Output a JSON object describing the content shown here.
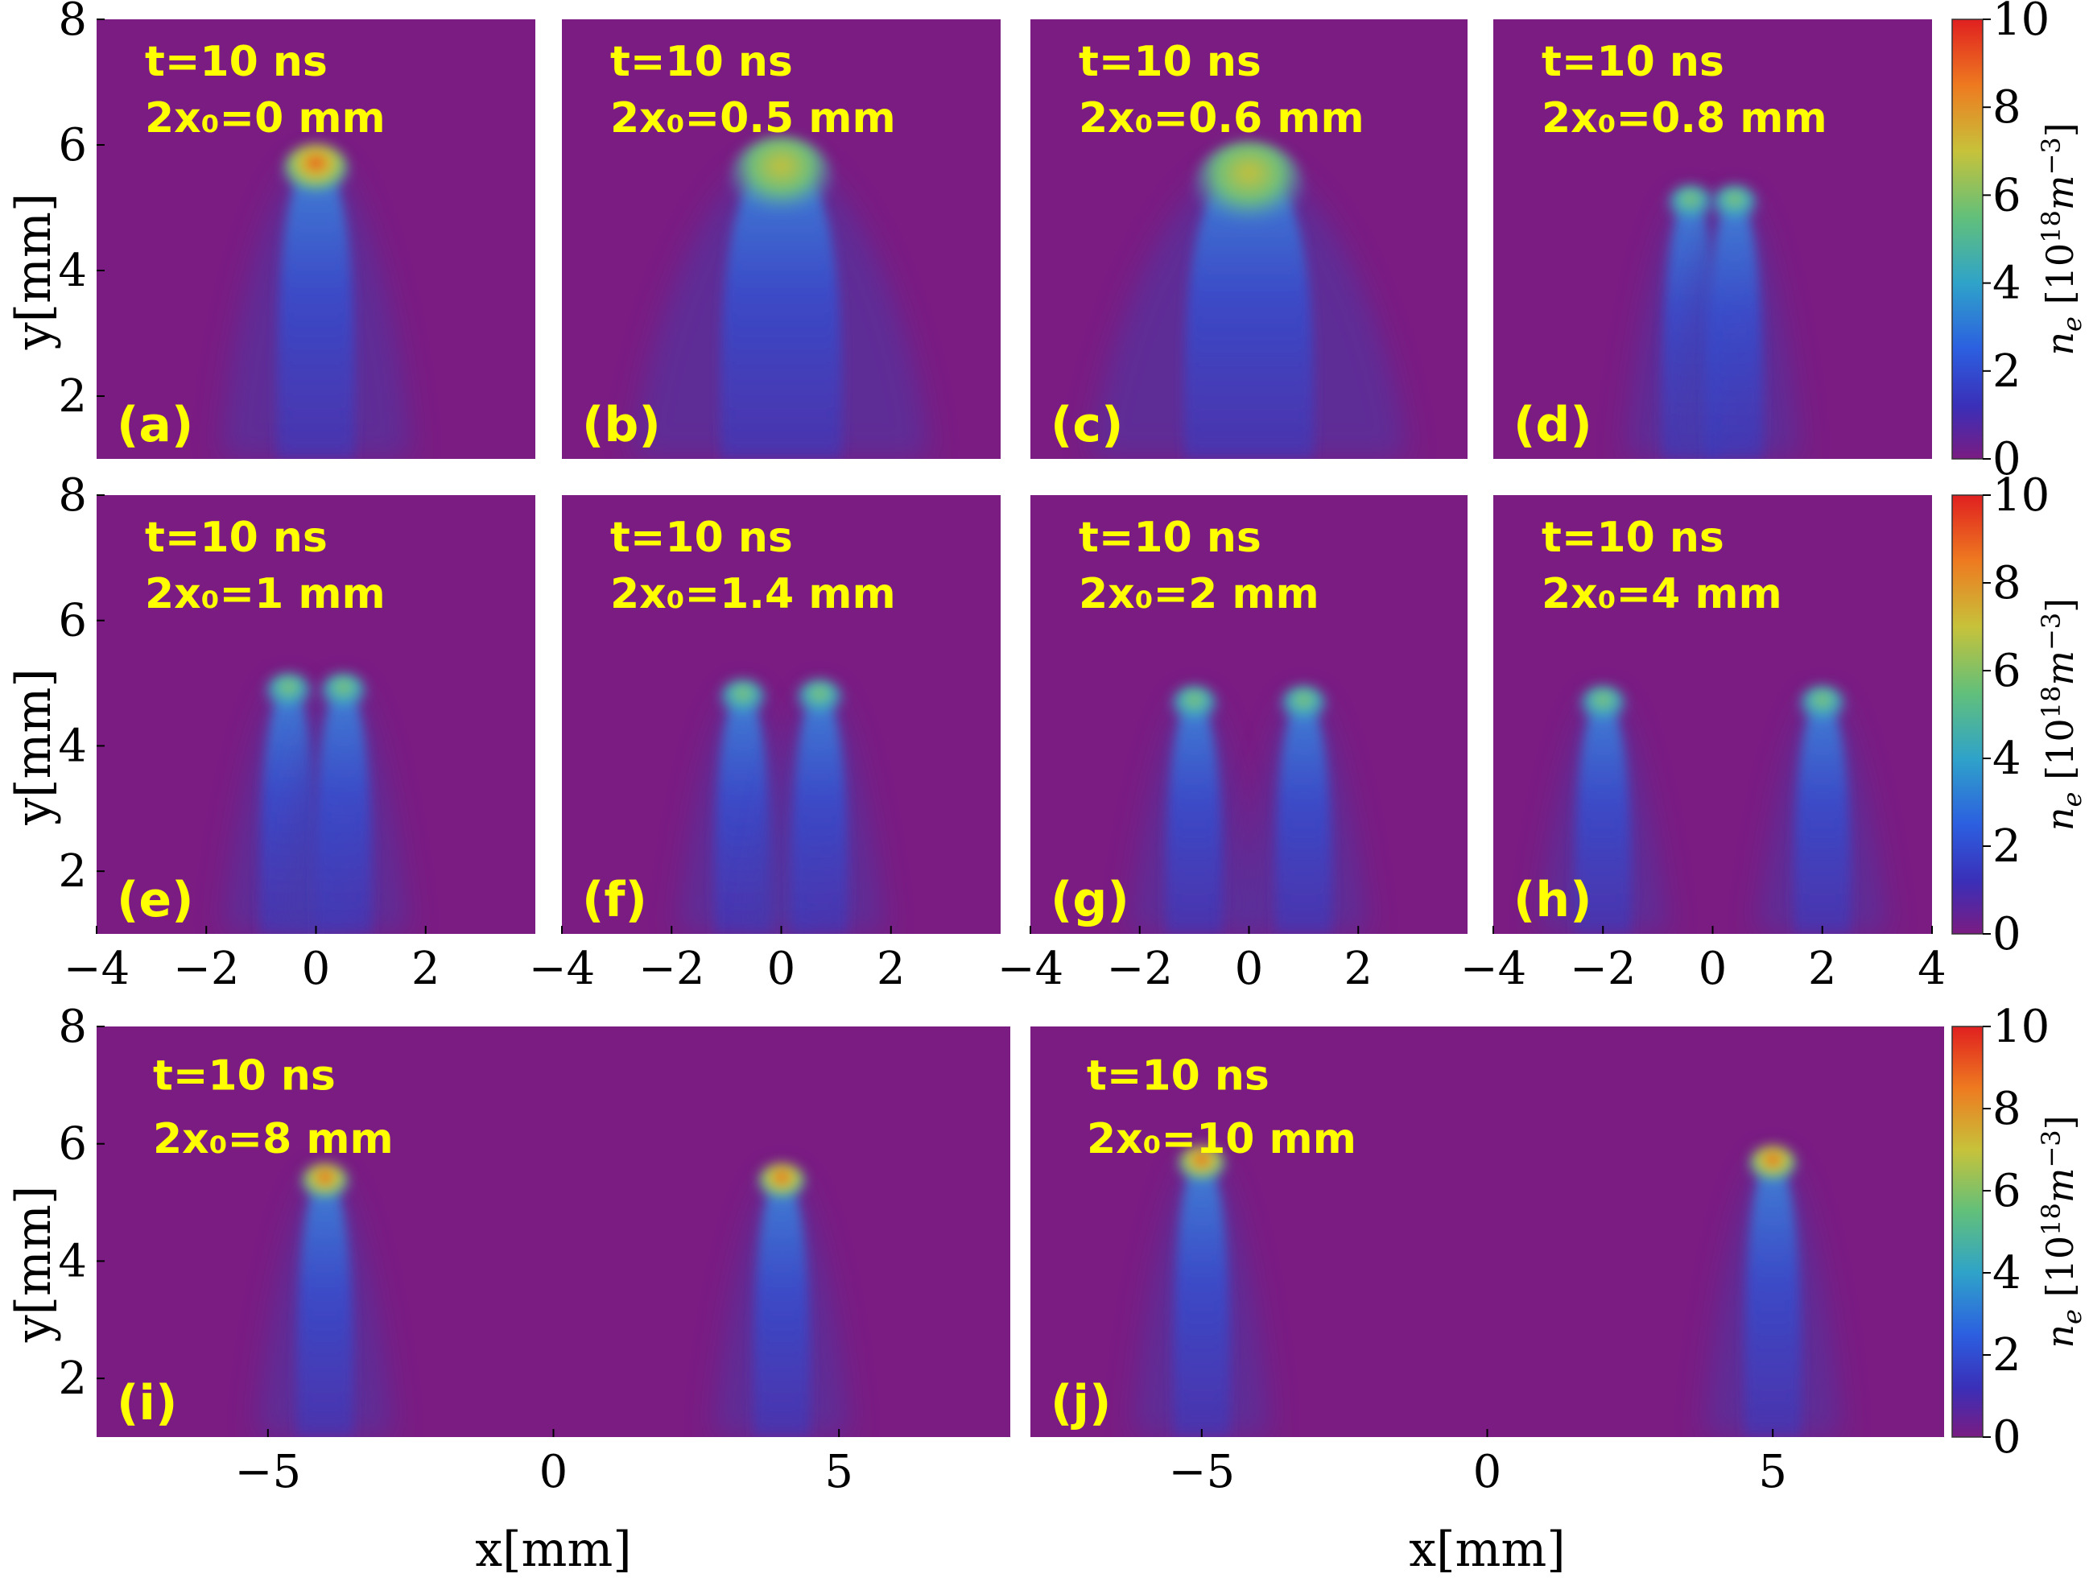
{
  "chart_data": {
    "type": "heatmap",
    "quantity": "n_e",
    "colorbar": {
      "label": "n_e [10^18 m^-3]",
      "range": [
        0,
        10
      ],
      "ticks": [
        0,
        2,
        4,
        6,
        8,
        10
      ]
    },
    "panels": [
      {
        "label": "(a)",
        "time": "t=10 ns",
        "separation": "2x₀=0 mm",
        "sep_mm": 0,
        "xlim": [
          -4,
          4
        ],
        "ylim": [
          1,
          8
        ],
        "xticks": [],
        "yticks": [
          2,
          4,
          6,
          8
        ],
        "ylabel": "y[mm]",
        "xlabel": "",
        "peak_y_mm": 5.8,
        "peak_ne": 8.5
      },
      {
        "label": "(b)",
        "time": "t=10 ns",
        "separation": "2x₀=0.5 mm",
        "sep_mm": 0.5,
        "xlim": [
          -4,
          4
        ],
        "ylim": [
          1,
          8
        ],
        "xticks": [],
        "yticks": [],
        "ylabel": "",
        "xlabel": "",
        "peak_y_mm": 5.8,
        "peak_ne": 7.0
      },
      {
        "label": "(c)",
        "time": "t=10 ns",
        "separation": "2x₀=0.6 mm",
        "sep_mm": 0.6,
        "xlim": [
          -4,
          4
        ],
        "ylim": [
          1,
          8
        ],
        "xticks": [],
        "yticks": [],
        "ylabel": "",
        "xlabel": "",
        "peak_y_mm": 5.7,
        "peak_ne": 6.0
      },
      {
        "label": "(d)",
        "time": "t=10 ns",
        "separation": "2x₀=0.8 mm",
        "sep_mm": 0.8,
        "xlim": [
          -4,
          4
        ],
        "ylim": [
          1,
          8
        ],
        "xticks": [],
        "yticks": [],
        "ylabel": "",
        "xlabel": "",
        "peak_y_mm": 5.2,
        "peak_ne": 5.5
      },
      {
        "label": "(e)",
        "time": "t=10 ns",
        "separation": "2x₀=1 mm",
        "sep_mm": 1,
        "xlim": [
          -4,
          4
        ],
        "ylim": [
          1,
          8
        ],
        "xticks": [
          -4,
          -2,
          0,
          2
        ],
        "yticks": [
          2,
          4,
          6,
          8
        ],
        "ylabel": "y[mm]",
        "xlabel": "",
        "peak_y_mm": 5.0,
        "peak_ne": 5.2
      },
      {
        "label": "(f)",
        "time": "t=10 ns",
        "separation": "2x₀=1.4 mm",
        "sep_mm": 1.4,
        "xlim": [
          -4,
          4
        ],
        "ylim": [
          1,
          8
        ],
        "xticks": [
          -4,
          -2,
          0,
          2
        ],
        "yticks": [],
        "ylabel": "",
        "xlabel": "",
        "peak_y_mm": 4.9,
        "peak_ne": 5.0
      },
      {
        "label": "(g)",
        "time": "t=10 ns",
        "separation": "2x₀=2 mm",
        "sep_mm": 2,
        "xlim": [
          -4,
          4
        ],
        "ylim": [
          1,
          8
        ],
        "xticks": [
          -4,
          -2,
          0,
          2
        ],
        "yticks": [],
        "ylabel": "",
        "xlabel": "",
        "peak_y_mm": 4.8,
        "peak_ne": 5.0
      },
      {
        "label": "(h)",
        "time": "t=10 ns",
        "separation": "2x₀=4 mm",
        "sep_mm": 4,
        "xlim": [
          -4,
          4
        ],
        "ylim": [
          1,
          8
        ],
        "xticks": [
          -4,
          -2,
          0,
          2,
          4
        ],
        "yticks": [],
        "ylabel": "",
        "xlabel": "",
        "peak_y_mm": 4.8,
        "peak_ne": 5.0
      },
      {
        "label": "(i)",
        "time": "t=10 ns",
        "separation": "2x₀=8 mm",
        "sep_mm": 8,
        "xlim": [
          -8,
          8
        ],
        "ylim": [
          1,
          8
        ],
        "xticks": [
          -5,
          0,
          5
        ],
        "yticks": [
          2,
          4,
          6,
          8
        ],
        "ylabel": "y[mm]",
        "xlabel": "x[mm]",
        "peak_y_mm": 5.5,
        "peak_ne": 8.0
      },
      {
        "label": "(j)",
        "time": "t=10 ns",
        "separation": "2x₀=10 mm",
        "sep_mm": 10,
        "xlim": [
          -8,
          8
        ],
        "ylim": [
          1,
          8
        ],
        "xticks": [
          -5,
          0,
          5
        ],
        "yticks": [],
        "ylabel": "",
        "xlabel": "x[mm]",
        "peak_y_mm": 5.8,
        "peak_ne": 9.0
      }
    ]
  }
}
